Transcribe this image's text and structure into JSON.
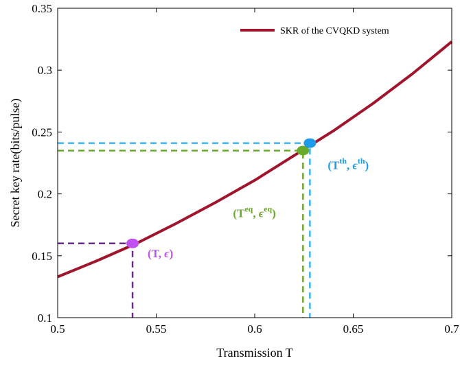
{
  "chart_data": {
    "type": "line",
    "xlabel": "Transmission T",
    "ylabel": "Secret key rate(bits/pulse)",
    "xlim": [
      0.5,
      0.7
    ],
    "ylim": [
      0.1,
      0.35
    ],
    "x_ticks": [
      "0.5",
      "0.55",
      "0.6",
      "0.65",
      "0.7"
    ],
    "y_ticks": [
      "0.1",
      "0.15",
      "0.2",
      "0.25",
      "0.3",
      "0.35"
    ],
    "grid": false,
    "legend_position": "top-right",
    "series": [
      {
        "name": "SKR of the CVQKD system",
        "color": "#a0142c",
        "x": [
          0.5,
          0.52,
          0.54,
          0.56,
          0.58,
          0.6,
          0.62,
          0.64,
          0.66,
          0.68,
          0.7
        ],
        "y": [
          0.133,
          0.146,
          0.16,
          0.176,
          0.193,
          0.211,
          0.231,
          0.251,
          0.273,
          0.297,
          0.323
        ]
      }
    ],
    "annotations": [
      {
        "label_main": "(T, ",
        "label_sym": "ϵ",
        "label_end": ")",
        "sup1": "",
        "sup2": "",
        "x": 0.538,
        "y": 0.16,
        "color": "#c050f0",
        "line_color": "#6a2a8a"
      },
      {
        "label_main": "(T",
        "label_sym": "ϵ",
        "label_end": ")",
        "sup1": "eq",
        "sup2": "eq",
        "x": 0.6245,
        "y": 0.235,
        "color": "#6aaa2a",
        "line_color": "#6aaa2a"
      },
      {
        "label_main": "(T",
        "label_sym": "ϵ",
        "label_end": ")",
        "sup1": "th",
        "sup2": "th",
        "x": 0.628,
        "y": 0.241,
        "color": "#1e9be8",
        "line_color": "#3ab4f0"
      }
    ]
  }
}
